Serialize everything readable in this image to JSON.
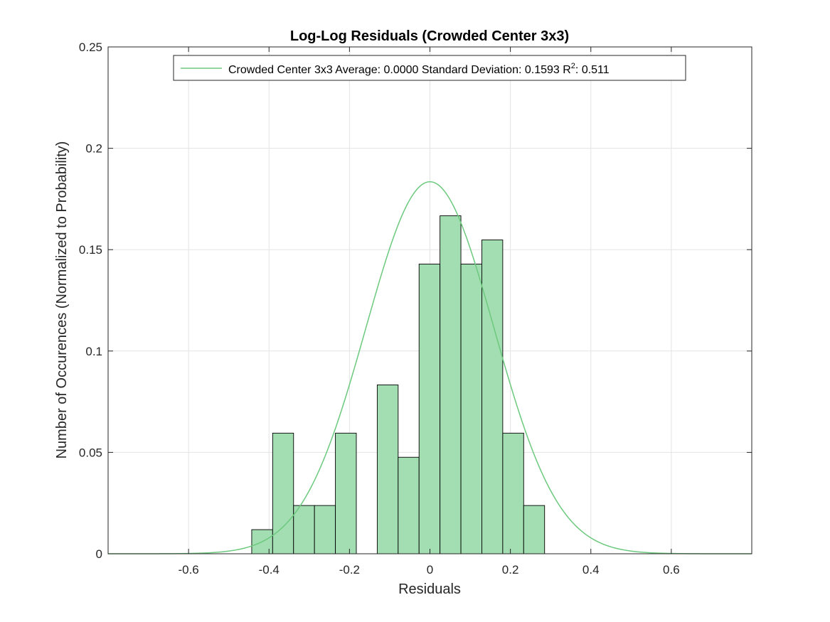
{
  "chart_data": {
    "type": "bar",
    "title": "Log-Log Residuals (Crowded Center 3x3)",
    "xlabel": "Residuals",
    "ylabel": "Number of Occurences (Normalized to Probability)",
    "xlim": [
      -0.8,
      0.8
    ],
    "ylim": [
      0,
      0.25
    ],
    "xticks": [
      -0.6,
      -0.4,
      -0.2,
      0,
      0.2,
      0.4,
      0.6
    ],
    "xtick_labels": [
      "-0.6",
      "-0.4",
      "-0.2",
      "0",
      "0.2",
      "0.4",
      "0.6"
    ],
    "yticks": [
      0,
      0.05,
      0.1,
      0.15,
      0.2,
      0.25
    ],
    "ytick_labels": [
      "0",
      "0.05",
      "0.1",
      "0.15",
      "0.2",
      "0.25"
    ],
    "grid": true,
    "bin_width": 0.052,
    "bins": [
      {
        "left": -0.443,
        "value": 0.0119
      },
      {
        "left": -0.391,
        "value": 0.0595
      },
      {
        "left": -0.339,
        "value": 0.0238
      },
      {
        "left": -0.287,
        "value": 0.0238
      },
      {
        "left": -0.235,
        "value": 0.0595
      },
      {
        "left": -0.183,
        "value": 0
      },
      {
        "left": -0.131,
        "value": 0.0833
      },
      {
        "left": -0.079,
        "value": 0.0476
      },
      {
        "left": -0.027,
        "value": 0.1429
      },
      {
        "left": 0.025,
        "value": 0.1667
      },
      {
        "left": 0.077,
        "value": 0.1429
      },
      {
        "left": 0.129,
        "value": 0.1548
      },
      {
        "left": 0.181,
        "value": 0.0595
      },
      {
        "left": 0.233,
        "value": 0.0238
      }
    ],
    "fit": {
      "type": "normal",
      "mean": 0.0,
      "std": 0.1593,
      "peak": 0.1835
    },
    "legend": {
      "placement": "top",
      "entry_main": "Crowded Center 3x3 Average: 0.0000 Standard Deviation: 0.1593 R",
      "entry_sup": "2",
      "entry_tail": ": 0.511"
    },
    "colors": {
      "bar_fill": "#a3ddb2",
      "bar_edge": "#000000",
      "fit_line": "#6cc97e",
      "grid": "#e3e3e3",
      "axes": "#262626"
    }
  }
}
